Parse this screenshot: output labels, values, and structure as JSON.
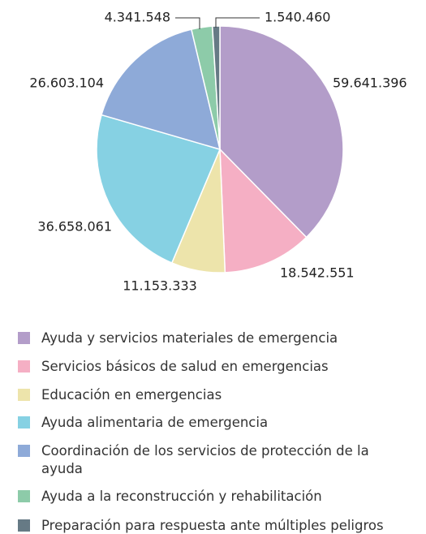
{
  "chart_data": {
    "type": "pie",
    "categories": [
      "Ayuda y servicios materiales de emergencia",
      "Servicios básicos de salud en emergencias",
      "Educación en emergencias",
      "Ayuda alimentaria de emergencia",
      "Coordinación de los servicios de protección de la ayuda",
      "Ayuda a la reconstrucción y rehabilitación",
      "Preparación para respuesta ante múltiples peligros"
    ],
    "values": [
      59641396,
      18542551,
      11153333,
      36658061,
      26603104,
      4341548,
      1540460
    ],
    "value_labels": [
      "59.641.396",
      "18.542.551",
      "11.153.333",
      "36.658.061",
      "26.603.104",
      "4.341.548",
      "1.540.460"
    ],
    "colors": [
      "#b39dc9",
      "#f5afc4",
      "#ede4ab",
      "#86d1e3",
      "#8eaad8",
      "#8dcba9",
      "#667a85"
    ],
    "legend": "bottom"
  }
}
